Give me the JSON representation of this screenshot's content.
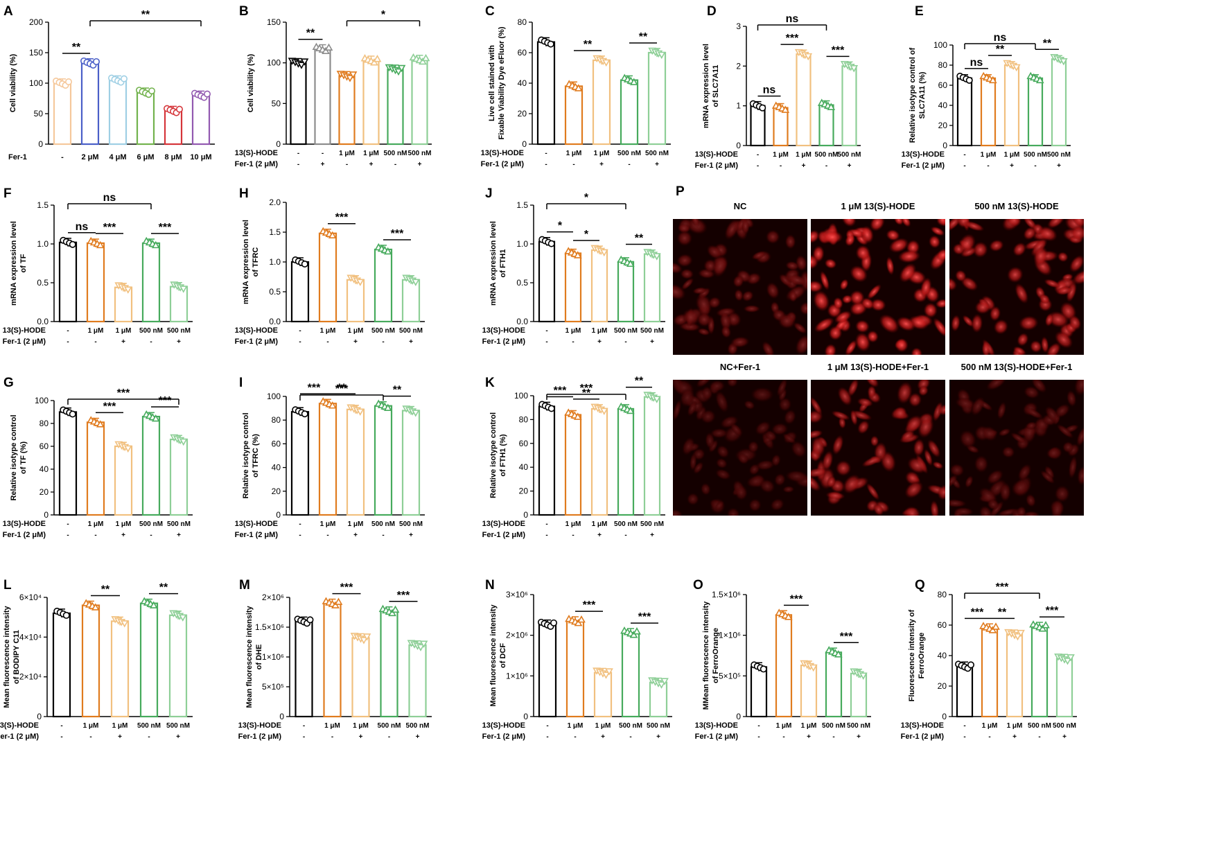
{
  "colors": {
    "ctrl": "#000000",
    "fer": "#8c8c8c",
    "oneuM": "#e07b1e",
    "oneuM_fer": "#f1c07f",
    "n500": "#46aa5c",
    "n500_fer": "#8ecf97",
    "A": [
      "#f5c89b",
      "#4a5fc8",
      "#9ecfe4",
      "#72b24d",
      "#d5353a",
      "#9259b0"
    ]
  },
  "conditions": {
    "row1_label": "13(S)-HODE",
    "row2_label": "Fer-1 (2 μM)",
    "fer_label_A": "Fer-1",
    "hode": [
      "-",
      "1 μM",
      "1 μM",
      "500 nM",
      "500 nM"
    ],
    "fer": [
      "-",
      "-",
      "+",
      "-",
      "+"
    ],
    "hode_B": [
      "-",
      "-",
      "1 μM",
      "1 μM",
      "500 nM",
      "500 nM"
    ],
    "fer_B": [
      "-",
      "+",
      "-",
      "+",
      "-",
      "+"
    ],
    "A_doses": [
      "-",
      "2 μM",
      "4 μM",
      "6 μM",
      "8 μM",
      "10 μM"
    ]
  },
  "image_panel": {
    "letter": "P",
    "titles": [
      "NC",
      "1 μM 13(S)-HODE",
      "500 nM 13(S)-HODE",
      "NC+Fer-1",
      "1 μM 13(S)-HODE+Fer-1",
      "500 nM 13(S)-HODE+Fer-1"
    ]
  },
  "chart_data": [
    {
      "id": "A",
      "type": "bar",
      "ylabel": "Cell viability (%)",
      "ylim": [
        0,
        200
      ],
      "yticks": [
        "0",
        "50",
        "100",
        "150",
        "200"
      ],
      "values": [
        100,
        133,
        105,
        85,
        55,
        80
      ],
      "sig": [
        {
          "a": 0,
          "b": 1,
          "t": "**"
        },
        {
          "a": 1,
          "b": 5,
          "t": "**"
        }
      ]
    },
    {
      "id": "B",
      "type": "bar",
      "ylabel": "Cell viability (%)",
      "ylim": [
        0,
        150
      ],
      "yticks": [
        "0",
        "50",
        "100",
        "150"
      ],
      "values": [
        100,
        117,
        84,
        103,
        92,
        104
      ],
      "sig": [
        {
          "a": 0,
          "b": 1,
          "t": "**"
        },
        {
          "a": 2,
          "b": 5,
          "t": "*"
        }
      ]
    },
    {
      "id": "C",
      "type": "bar",
      "ylabel": [
        "Live cell stained with",
        "Fixable Viability Dye eFluor (%)"
      ],
      "ylim": [
        0,
        80
      ],
      "yticks": [
        "0",
        "20",
        "40",
        "60",
        "80"
      ],
      "values": [
        67,
        38,
        55,
        42,
        60
      ],
      "sig": [
        {
          "a": 1,
          "b": 2,
          "t": "**"
        },
        {
          "a": 3,
          "b": 4,
          "t": "**"
        }
      ]
    },
    {
      "id": "D",
      "type": "bar",
      "ylabel": [
        "mRNA expression level",
        "of SLC7A11"
      ],
      "ylim": [
        0,
        3
      ],
      "yticks": [
        "0",
        "1",
        "2",
        "3"
      ],
      "values": [
        1.0,
        0.95,
        2.3,
        1.02,
        2.0
      ],
      "sig": [
        {
          "a": 0,
          "b": 1,
          "t": "ns"
        },
        {
          "a": 1,
          "b": 2,
          "t": "***"
        },
        {
          "a": 3,
          "b": 4,
          "t": "***"
        },
        {
          "a": 0,
          "b": 3,
          "t": "ns"
        }
      ]
    },
    {
      "id": "E",
      "type": "bar",
      "ylabel": [
        "Relative isotype control of",
        "SLC7A11 (%)"
      ],
      "ylim": [
        0,
        100
      ],
      "yticks": [
        "0",
        "20",
        "40",
        "60",
        "80",
        "100"
      ],
      "values": [
        67,
        67,
        80,
        67,
        86
      ],
      "sig": [
        {
          "a": 0,
          "b": 1,
          "t": "ns"
        },
        {
          "a": 1,
          "b": 2,
          "t": "**"
        },
        {
          "a": 3,
          "b": 4,
          "t": "**"
        },
        {
          "a": 0,
          "b": 3,
          "t": "ns"
        }
      ]
    },
    {
      "id": "F",
      "type": "bar",
      "ylabel": [
        "mRNA expression level",
        "of TF"
      ],
      "ylim": [
        0,
        1.5
      ],
      "yticks": [
        "0.0",
        "0.5",
        "1.0",
        "1.5"
      ],
      "values": [
        1.02,
        1.01,
        0.44,
        1.01,
        0.45
      ],
      "sig": [
        {
          "a": 0,
          "b": 1,
          "t": "ns"
        },
        {
          "a": 1,
          "b": 2,
          "t": "***"
        },
        {
          "a": 3,
          "b": 4,
          "t": "***"
        },
        {
          "a": 0,
          "b": 3,
          "t": "ns"
        }
      ]
    },
    {
      "id": "H",
      "type": "bar",
      "ylabel": [
        "mRNA expression level",
        "of TFRC"
      ],
      "ylim": [
        0,
        2.0
      ],
      "yticks": [
        "0.0",
        "0.5",
        "1.0",
        "1.5",
        "2.0"
      ],
      "values": [
        1.0,
        1.48,
        0.7,
        1.21,
        0.7
      ],
      "sig": [
        {
          "a": 1,
          "b": 2,
          "t": "***"
        },
        {
          "a": 3,
          "b": 4,
          "t": "***"
        }
      ]
    },
    {
      "id": "J",
      "type": "bar",
      "ylabel": [
        "mRNA expression level",
        "of FTH1"
      ],
      "ylim": [
        0,
        1.5
      ],
      "yticks": [
        "0.0",
        "0.5",
        "1.0",
        "1.5"
      ],
      "values": [
        1.03,
        0.88,
        0.92,
        0.77,
        0.87
      ],
      "sig": [
        {
          "a": 0,
          "b": 1,
          "t": "*"
        },
        {
          "a": 1,
          "b": 2,
          "t": "*"
        },
        {
          "a": 3,
          "b": 4,
          "t": "**"
        },
        {
          "a": 0,
          "b": 3,
          "t": "*"
        }
      ]
    },
    {
      "id": "G",
      "type": "bar",
      "ylabel": [
        "Relative isotype control",
        "of TF (%)"
      ],
      "ylim": [
        0,
        100
      ],
      "yticks": [
        "0",
        "20",
        "40",
        "60",
        "80",
        "100"
      ],
      "values": [
        90,
        81,
        60,
        86,
        66
      ],
      "sig": [
        {
          "a": 1,
          "b": 2,
          "t": "***"
        },
        {
          "a": 3,
          "b": 4,
          "t": "***"
        },
        {
          "a": 0,
          "b": 4,
          "t": "***"
        }
      ]
    },
    {
      "id": "I",
      "type": "bar",
      "ylabel": [
        "Relative isotype control",
        "of TFRC (%)"
      ],
      "ylim": [
        0,
        100
      ],
      "yticks": [
        "0",
        "20",
        "40",
        "60",
        "80",
        "100"
      ],
      "values": [
        87,
        94,
        89,
        92,
        88
      ],
      "sig": [
        {
          "a": 0,
          "b": 1,
          "t": "***"
        },
        {
          "a": 1,
          "b": 2,
          "t": "**"
        },
        {
          "a": 3,
          "b": 4,
          "t": "**"
        },
        {
          "a": 0,
          "b": 3,
          "t": "***"
        }
      ]
    },
    {
      "id": "K",
      "type": "bar",
      "ylabel": [
        "Relative isotype control",
        "of FTH1 (%)"
      ],
      "ylim": [
        0,
        100
      ],
      "yticks": [
        "0",
        "20",
        "40",
        "60",
        "80",
        "100"
      ],
      "values": [
        91,
        84,
        89,
        89,
        99
      ],
      "sig": [
        {
          "a": 0,
          "b": 1,
          "t": "***"
        },
        {
          "a": 1,
          "b": 2,
          "t": "**"
        },
        {
          "a": 3,
          "b": 4,
          "t": "**"
        },
        {
          "a": 0,
          "b": 3,
          "t": "***"
        }
      ]
    },
    {
      "id": "L",
      "type": "bar",
      "ylabel": [
        "Mean fluorescence intensity",
        "of BODIPY C11"
      ],
      "ylim": [
        0,
        60000
      ],
      "yticks": [
        "0",
        "2×10⁴",
        "4×10⁴",
        "6×10⁴"
      ],
      "values": [
        52000,
        56000,
        48000,
        57000,
        51000
      ],
      "sig": [
        {
          "a": 1,
          "b": 2,
          "t": "**"
        },
        {
          "a": 3,
          "b": 4,
          "t": "**"
        }
      ]
    },
    {
      "id": "M",
      "type": "bar",
      "ylabel": [
        "Mean fluorescence intensity",
        "of DHE"
      ],
      "ylim": [
        0,
        2000000
      ],
      "yticks": [
        "0",
        "5×10⁵",
        "1×10⁶",
        "1.5×10⁶",
        "2×10⁶"
      ],
      "values": [
        1600000,
        1900000,
        1320000,
        1770000,
        1200000
      ],
      "sig": [
        {
          "a": 1,
          "b": 2,
          "t": "***"
        },
        {
          "a": 3,
          "b": 4,
          "t": "***"
        }
      ]
    },
    {
      "id": "N",
      "type": "bar",
      "ylabel": [
        "Mean fluorescence intensity",
        "of DCF"
      ],
      "ylim": [
        0,
        3000000
      ],
      "yticks": [
        "0",
        "1×10⁶",
        "2×10⁶",
        "3×10⁶"
      ],
      "values": [
        2270000,
        2350000,
        1080000,
        2060000,
        840000
      ],
      "sig": [
        {
          "a": 1,
          "b": 2,
          "t": "***"
        },
        {
          "a": 3,
          "b": 4,
          "t": "***"
        }
      ]
    },
    {
      "id": "O",
      "type": "bar",
      "ylabel": [
        "MMean fluorescence intensity",
        "of FerroOrange"
      ],
      "ylim": [
        0,
        1500000
      ],
      "yticks": [
        "0",
        "5×10⁵",
        "1×10⁶",
        "1.5×10⁶"
      ],
      "values": [
        610000,
        1250000,
        630000,
        790000,
        530000
      ],
      "sig": [
        {
          "a": 1,
          "b": 2,
          "t": "***"
        },
        {
          "a": 3,
          "b": 4,
          "t": "***"
        }
      ]
    },
    {
      "id": "Q",
      "type": "bar",
      "ylabel": [
        "Fluorescence intensity of",
        "FerroOrange"
      ],
      "ylim": [
        0,
        80
      ],
      "yticks": [
        "0",
        "20",
        "40",
        "60",
        "80"
      ],
      "values": [
        33,
        58,
        54,
        59,
        38
      ],
      "sig": [
        {
          "a": 0,
          "b": 1,
          "t": "***"
        },
        {
          "a": 1,
          "b": 2,
          "t": "**"
        },
        {
          "a": 3,
          "b": 4,
          "t": "***"
        },
        {
          "a": 0,
          "b": 3,
          "t": "***"
        }
      ]
    }
  ]
}
